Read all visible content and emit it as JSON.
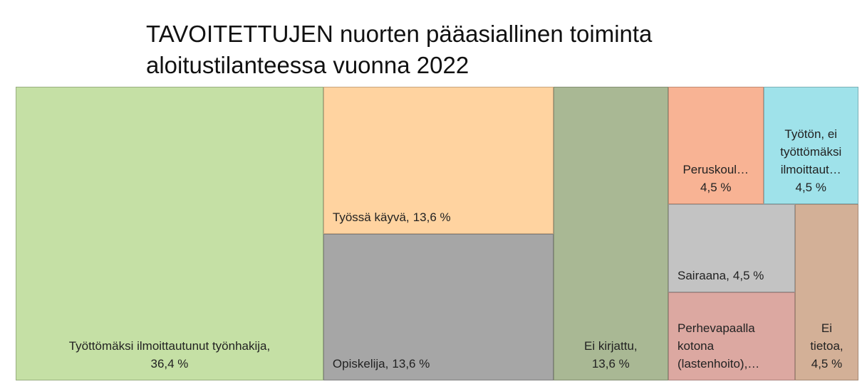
{
  "chart_data": {
    "type": "treemap",
    "title": "TAVOITETTUJEN nuorten pääasiallinen toiminta aloitustilanteessa vuonna 2022",
    "categories": [
      "Työttömäksi ilmoittautunut työnhakija,",
      "Työssä käyvä,",
      "Opiskelija,",
      "Ei kirjattu,",
      "Peruskoul…",
      "Työtön, ei työttömäksi ilmoittaut…",
      "Sairaana,",
      "Perhevapaalla kotona (lastenhoito),…",
      "Ei tietoa,"
    ],
    "values": [
      36.4,
      13.6,
      13.6,
      13.6,
      4.5,
      4.5,
      4.5,
      4.5,
      4.5
    ],
    "value_labels": [
      "36,4 %",
      "13,6 %",
      "13,6 %",
      "13,6 %",
      "4,5 %",
      "4,5 %",
      "4,5 %",
      null,
      "4,5 %"
    ],
    "colors": [
      "#c5e0a5",
      "#ffd3a0",
      "#a6a6a6",
      "#a9b894",
      "#f8b394",
      "#9fe2ea",
      "#c3c3c3",
      "#dca8a1",
      "#d3b097"
    ]
  }
}
